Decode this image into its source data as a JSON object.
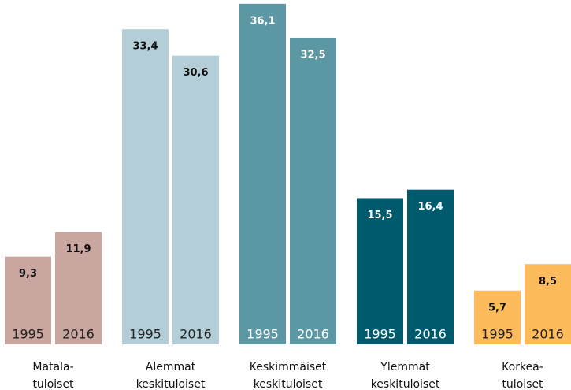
{
  "chart_data": {
    "type": "bar",
    "categories": [
      [
        "Matala-",
        "tuloiset"
      ],
      [
        "Alemmat",
        "keskituloiset"
      ],
      [
        "Keskimmäiset",
        "keskituloiset"
      ],
      [
        "Ylemmät",
        "keskituloiset"
      ],
      [
        "Korkea-",
        "tuloiset"
      ]
    ],
    "colors": [
      "#c9a6a0",
      "#b3ced6",
      "#5b98a4",
      "#005a6e",
      "#fdbb5c"
    ],
    "label_colors": [
      "#111111",
      "#111111",
      "#ffffff",
      "#ffffff",
      "#111111"
    ],
    "series": [
      {
        "name": "1995",
        "values": [
          9.3,
          33.4,
          36.1,
          15.5,
          5.7
        ],
        "value_labels": [
          "9,3",
          "33,4",
          "36,1",
          "15,5",
          "5,7"
        ]
      },
      {
        "name": "2016",
        "values": [
          11.9,
          30.6,
          32.5,
          16.4,
          8.5
        ],
        "value_labels": [
          "11,9",
          "30,6",
          "32,5",
          "16,4",
          "8,5"
        ]
      }
    ]
  }
}
